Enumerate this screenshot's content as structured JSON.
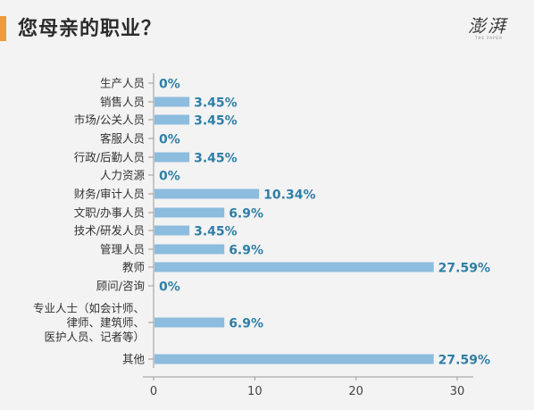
{
  "title": "您母亲的职业？",
  "logo": {
    "text": "澎湃",
    "sub": "THE PAPER"
  },
  "colors": {
    "bar": "#8cbcde",
    "value_label": "#2f7fa6",
    "accent": "#ef9b3a",
    "background": "#f3f3f3"
  },
  "chart_data": {
    "type": "bar",
    "orientation": "horizontal",
    "categories": [
      [
        "生产人员"
      ],
      [
        "销售人员"
      ],
      [
        "市场/公关人员"
      ],
      [
        "客服人员"
      ],
      [
        "行政/后勤人员"
      ],
      [
        "人力资源"
      ],
      [
        "财务/审计人员"
      ],
      [
        "文职/办事人员"
      ],
      [
        "技术/研发人员"
      ],
      [
        "管理人员"
      ],
      [
        "教师"
      ],
      [
        "顾问/咨询"
      ],
      [
        "专业人士（如会计师、",
        "律师、建筑师、",
        "医护人员、记者等）"
      ],
      [
        "其他"
      ]
    ],
    "values": [
      0,
      3.45,
      3.45,
      0,
      3.45,
      0,
      10.34,
      6.9,
      3.45,
      6.9,
      27.59,
      0,
      6.9,
      27.59
    ],
    "value_labels": [
      "0%",
      "3.45%",
      "3.45%",
      "0%",
      "3.45%",
      "0%",
      "10.34%",
      "6.9%",
      "3.45%",
      "6.9%",
      "27.59%",
      "0%",
      "6.9%",
      "27.59%"
    ],
    "xlim": [
      0,
      30
    ],
    "xticks": [
      "0",
      "10",
      "20",
      "30"
    ],
    "grid": false,
    "legend": "none"
  }
}
